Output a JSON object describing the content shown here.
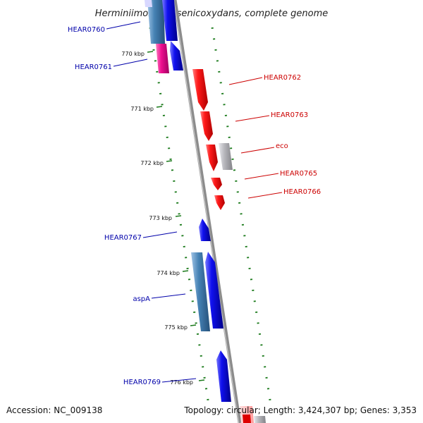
{
  "title": "Herminiimonas arsenicoxydans, complete genome",
  "footer": {
    "accession": "Accession: NC_009138",
    "info": "Topology: circular; Length: 3,424,307 bp; Genes: 3,353"
  },
  "colors": {
    "background": "#ffffff",
    "backbone": "#8c8c8c",
    "tick": "#1a7a1a",
    "forward_gene": "#ee0000",
    "reverse_gene": "#0000dd",
    "reverse_gene_alt": "#3f7fb8",
    "pseudo_gene": "#b3b3b8",
    "magenta_gene": "#e6007e",
    "forward_label": "#cc0000",
    "reverse_label": "#0000aa"
  },
  "kbp_ticks": [
    "770 kbp",
    "771 kbp",
    "772 kbp",
    "773 kbp",
    "774 kbp",
    "775 kbp",
    "776 kbp"
  ],
  "genes": {
    "left": [
      "HEAR0760",
      "HEAR0761",
      "HEAR0767",
      "aspA",
      "HEAR0769"
    ],
    "right": [
      "HEAR0762",
      "HEAR0763",
      "eco",
      "HEAR0765",
      "HEAR0766"
    ]
  }
}
